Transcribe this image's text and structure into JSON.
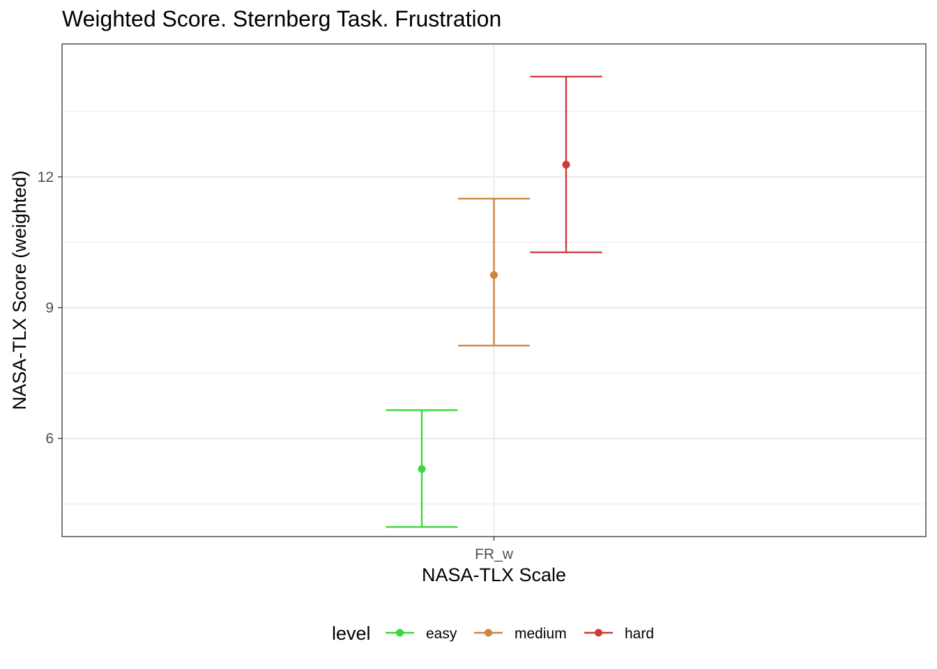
{
  "chart_data": {
    "type": "errorbar",
    "title": "Weighted Score. Sternberg Task. Frustration",
    "xlabel": "NASA-TLX Scale",
    "ylabel": "NASA-TLX Score (weighted)",
    "categories": [
      "FR_w"
    ],
    "y_ticks": [
      6,
      9,
      12
    ],
    "ylim": [
      3.75,
      15.05
    ],
    "grid": true,
    "legend": {
      "title": "level",
      "placement": "bottom"
    },
    "series": [
      {
        "name": "easy",
        "color": "#3bd83b",
        "mean": 5.3,
        "lower": 3.97,
        "upper": 6.65
      },
      {
        "name": "medium",
        "color": "#cd853f",
        "mean": 9.75,
        "lower": 8.13,
        "upper": 11.5
      },
      {
        "name": "hard",
        "color": "#cd3b3b",
        "mean": 12.28,
        "lower": 10.27,
        "upper": 14.3
      }
    ]
  }
}
